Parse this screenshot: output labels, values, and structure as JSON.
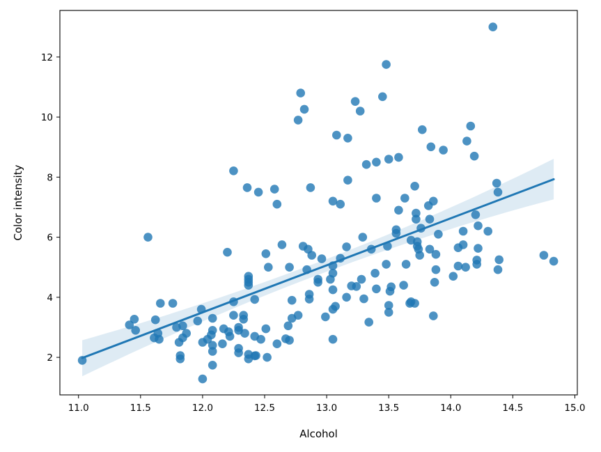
{
  "chart_data": {
    "type": "scatter",
    "title": "",
    "xlabel": "Alcohol",
    "ylabel": "Color intensity",
    "xlim": [
      10.85,
      15.02
    ],
    "ylim": [
      0.75,
      13.55
    ],
    "xticks": [
      "11.0",
      "11.5",
      "12.0",
      "12.5",
      "13.0",
      "13.5",
      "14.0",
      "14.5",
      "15.0"
    ],
    "yticks": [
      "2",
      "4",
      "6",
      "8",
      "10",
      "12"
    ],
    "grid": false,
    "colors": {
      "points": "#1f77b4",
      "line": "#1f77b4",
      "band": "#1f77b4"
    },
    "regression": {
      "x": [
        11.03,
        14.83
      ],
      "y": [
        1.98,
        7.93
      ],
      "ci_lower": [
        1.37,
        7.26
      ],
      "ci_upper": [
        2.57,
        8.61
      ],
      "ci_mid": [
        12.91,
        4.93
      ]
    },
    "points": [
      [
        11.03,
        1.9
      ],
      [
        11.41,
        3.08
      ],
      [
        11.45,
        3.27
      ],
      [
        11.46,
        2.9
      ],
      [
        11.56,
        6.0
      ],
      [
        11.61,
        2.65
      ],
      [
        11.62,
        3.25
      ],
      [
        11.64,
        2.8
      ],
      [
        11.65,
        2.6
      ],
      [
        11.66,
        3.8
      ],
      [
        11.76,
        3.8
      ],
      [
        11.79,
        3.0
      ],
      [
        11.81,
        2.5
      ],
      [
        11.82,
        2.06
      ],
      [
        11.82,
        1.95
      ],
      [
        11.84,
        3.05
      ],
      [
        11.84,
        2.65
      ],
      [
        11.87,
        2.8
      ],
      [
        11.96,
        3.21
      ],
      [
        11.99,
        3.6
      ],
      [
        12.0,
        2.5
      ],
      [
        12.0,
        1.28
      ],
      [
        12.04,
        2.6
      ],
      [
        12.07,
        2.75
      ],
      [
        12.08,
        3.3
      ],
      [
        12.08,
        2.4
      ],
      [
        12.08,
        2.9
      ],
      [
        12.08,
        2.2
      ],
      [
        12.08,
        1.74
      ],
      [
        12.16,
        2.45
      ],
      [
        12.17,
        2.95
      ],
      [
        12.2,
        5.5
      ],
      [
        12.21,
        2.85
      ],
      [
        12.22,
        2.7
      ],
      [
        12.25,
        8.21
      ],
      [
        12.25,
        3.85
      ],
      [
        12.25,
        3.4
      ],
      [
        12.29,
        3.0
      ],
      [
        12.29,
        2.3
      ],
      [
        12.29,
        2.9
      ],
      [
        12.29,
        2.15
      ],
      [
        12.33,
        3.4
      ],
      [
        12.33,
        3.27
      ],
      [
        12.34,
        2.8
      ],
      [
        12.36,
        7.65
      ],
      [
        12.37,
        4.7
      ],
      [
        12.37,
        4.6
      ],
      [
        12.37,
        4.5
      ],
      [
        12.37,
        4.4
      ],
      [
        12.37,
        2.1
      ],
      [
        12.37,
        1.95
      ],
      [
        12.42,
        3.93
      ],
      [
        12.42,
        2.7
      ],
      [
        12.42,
        2.05
      ],
      [
        12.43,
        2.06
      ],
      [
        12.45,
        7.5
      ],
      [
        12.47,
        2.6
      ],
      [
        12.51,
        5.45
      ],
      [
        12.51,
        2.95
      ],
      [
        12.52,
        2.0
      ],
      [
        12.53,
        5.0
      ],
      [
        12.58,
        7.6
      ],
      [
        12.6,
        7.1
      ],
      [
        12.6,
        2.45
      ],
      [
        12.64,
        5.75
      ],
      [
        12.67,
        2.62
      ],
      [
        12.69,
        3.05
      ],
      [
        12.7,
        5.0
      ],
      [
        12.7,
        2.57
      ],
      [
        12.72,
        3.9
      ],
      [
        12.72,
        3.3
      ],
      [
        12.77,
        9.9
      ],
      [
        12.77,
        3.4
      ],
      [
        12.79,
        10.8
      ],
      [
        12.81,
        5.7
      ],
      [
        12.82,
        10.26
      ],
      [
        12.84,
        4.92
      ],
      [
        12.85,
        5.6
      ],
      [
        12.86,
        4.1
      ],
      [
        12.86,
        3.94
      ],
      [
        12.87,
        7.65
      ],
      [
        12.88,
        5.4
      ],
      [
        12.93,
        4.6
      ],
      [
        12.93,
        4.5
      ],
      [
        12.96,
        5.28
      ],
      [
        12.99,
        3.35
      ],
      [
        13.03,
        4.6
      ],
      [
        13.05,
        7.2
      ],
      [
        13.05,
        5.05
      ],
      [
        13.05,
        4.8
      ],
      [
        13.05,
        4.25
      ],
      [
        13.05,
        3.6
      ],
      [
        13.05,
        2.6
      ],
      [
        13.07,
        3.7
      ],
      [
        13.08,
        9.4
      ],
      [
        13.11,
        7.1
      ],
      [
        13.11,
        5.3
      ],
      [
        13.16,
        5.68
      ],
      [
        13.16,
        4.0
      ],
      [
        13.17,
        9.3
      ],
      [
        13.17,
        7.9
      ],
      [
        13.2,
        4.38
      ],
      [
        13.23,
        10.52
      ],
      [
        13.24,
        4.36
      ],
      [
        13.27,
        10.2
      ],
      [
        13.28,
        4.6
      ],
      [
        13.29,
        6.0
      ],
      [
        13.3,
        3.95
      ],
      [
        13.32,
        8.42
      ],
      [
        13.34,
        3.17
      ],
      [
        13.36,
        5.6
      ],
      [
        13.39,
        4.8
      ],
      [
        13.4,
        8.5
      ],
      [
        13.4,
        7.3
      ],
      [
        13.4,
        4.28
      ],
      [
        13.45,
        10.68
      ],
      [
        13.48,
        11.75
      ],
      [
        13.48,
        5.1
      ],
      [
        13.49,
        5.7
      ],
      [
        13.5,
        8.6
      ],
      [
        13.5,
        3.73
      ],
      [
        13.5,
        3.5
      ],
      [
        13.51,
        4.2
      ],
      [
        13.52,
        4.35
      ],
      [
        13.56,
        6.25
      ],
      [
        13.56,
        6.13
      ],
      [
        13.58,
        8.66
      ],
      [
        13.58,
        6.9
      ],
      [
        13.62,
        4.4
      ],
      [
        13.63,
        7.3
      ],
      [
        13.64,
        5.1
      ],
      [
        13.67,
        3.8
      ],
      [
        13.68,
        5.9
      ],
      [
        13.68,
        3.85
      ],
      [
        13.71,
        7.7
      ],
      [
        13.71,
        3.8
      ],
      [
        13.72,
        6.8
      ],
      [
        13.72,
        6.6
      ],
      [
        13.73,
        5.85
      ],
      [
        13.73,
        5.7
      ],
      [
        13.74,
        5.6
      ],
      [
        13.75,
        5.4
      ],
      [
        13.76,
        6.3
      ],
      [
        13.77,
        9.58
      ],
      [
        13.82,
        7.05
      ],
      [
        13.83,
        6.6
      ],
      [
        13.83,
        5.6
      ],
      [
        13.84,
        9.01
      ],
      [
        13.86,
        7.2
      ],
      [
        13.86,
        3.38
      ],
      [
        13.87,
        4.5
      ],
      [
        13.88,
        5.43
      ],
      [
        13.88,
        4.92
      ],
      [
        13.9,
        6.1
      ],
      [
        13.94,
        8.9
      ],
      [
        14.02,
        4.7
      ],
      [
        14.06,
        5.65
      ],
      [
        14.06,
        5.04
      ],
      [
        14.1,
        6.2
      ],
      [
        14.1,
        5.75
      ],
      [
        14.12,
        5.0
      ],
      [
        14.13,
        9.2
      ],
      [
        14.16,
        9.7
      ],
      [
        14.19,
        8.7
      ],
      [
        14.2,
        6.75
      ],
      [
        14.21,
        5.24
      ],
      [
        14.21,
        5.1
      ],
      [
        14.22,
        6.38
      ],
      [
        14.22,
        5.63
      ],
      [
        14.3,
        6.2
      ],
      [
        14.34,
        13.0
      ],
      [
        14.37,
        7.8
      ],
      [
        14.38,
        7.5
      ],
      [
        14.38,
        4.92
      ],
      [
        14.39,
        5.25
      ],
      [
        14.75,
        5.4
      ],
      [
        14.83,
        5.2
      ]
    ]
  }
}
